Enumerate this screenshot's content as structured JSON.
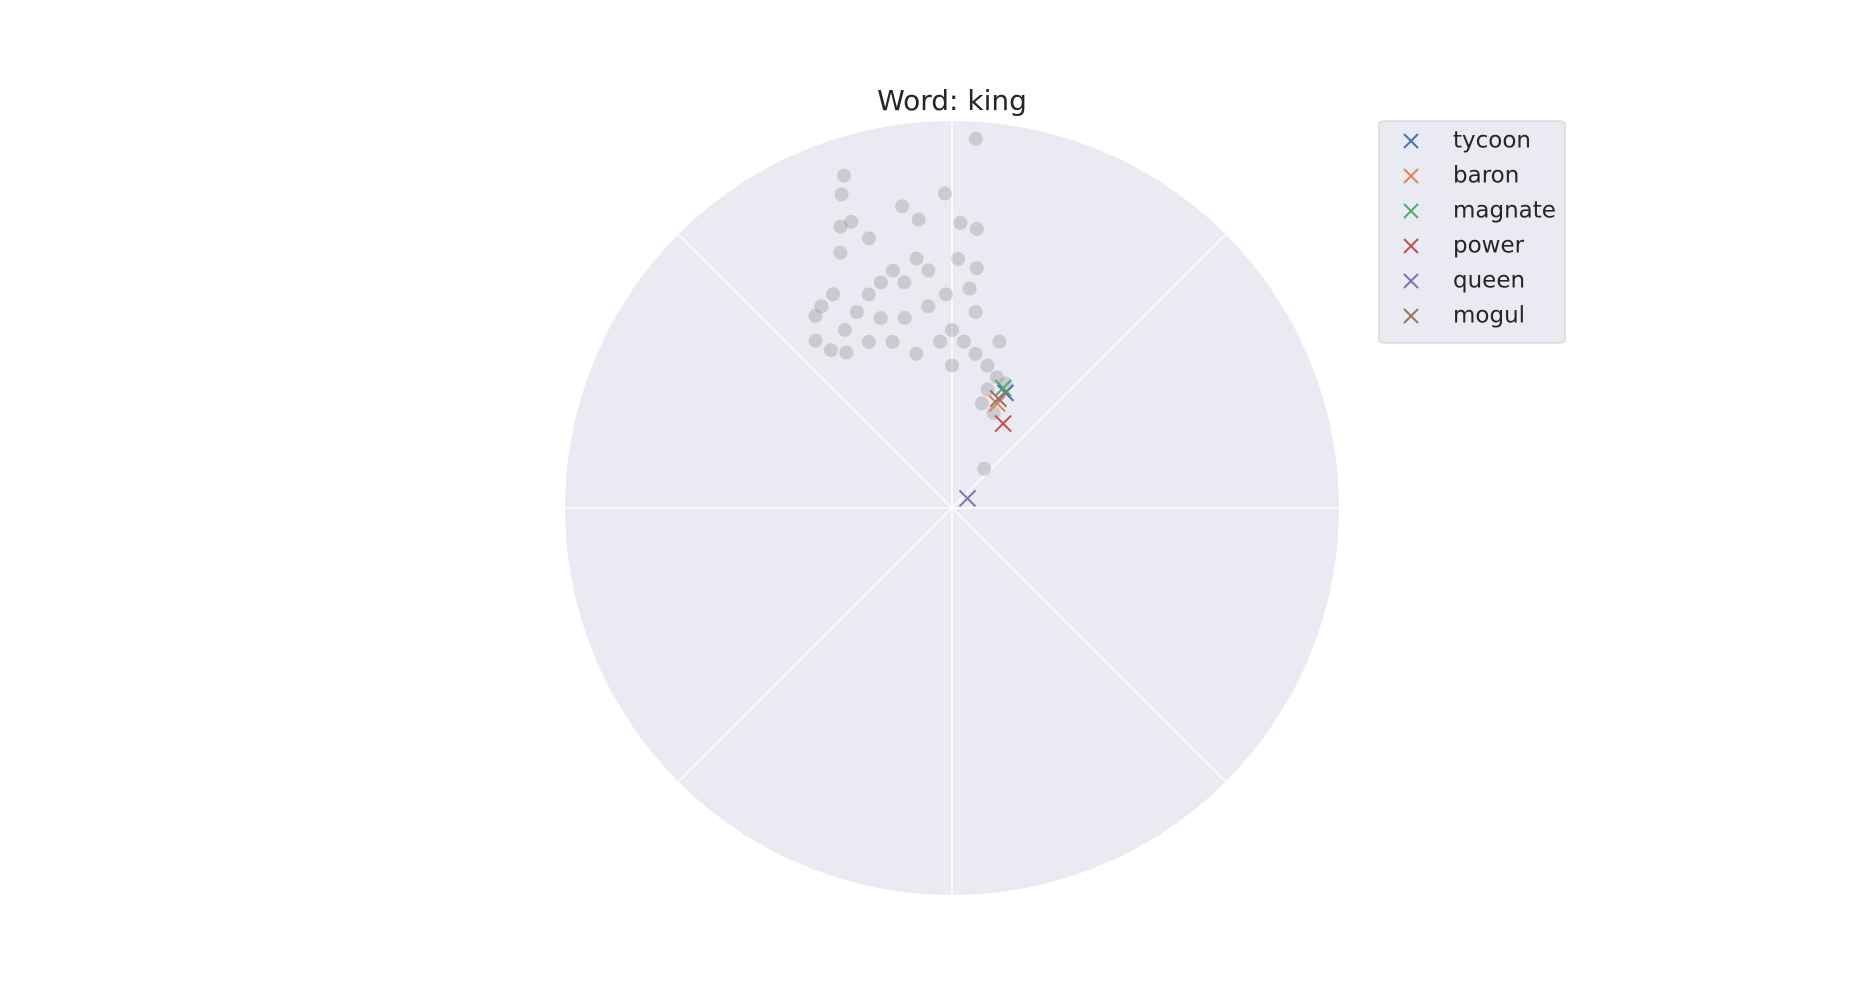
{
  "chart_data": {
    "type": "polar",
    "title": "Word: king",
    "rlim": [
      0,
      1
    ],
    "thetaticks": [
      0,
      45,
      90,
      135,
      180,
      225,
      270,
      315
    ],
    "grid": true,
    "series": [
      {
        "color": "#808080",
        "theta": [
          86.3,
          108.0,
          109.4,
          91.3,
          109.4,
          111.6,
          88.3,
          84.9,
          99.4,
          96.6,
          107.1,
          113.6,
          84.1,
          125.4,
          129.2,
          127.5,
          124.2,
          111.3,
          101.9,
          95.7,
          110.6,
          104.0,
          96.7,
          109.7,
          115.9,
          121.0,
          90.0,
          85.9,
          83.1,
          103.0,
          94.1,
          81.3,
          76.0,
          71.0,
          66.8,
          73.3,
          74.1,
          66.4,
          50.7,
          122.9,
          107.5,
          98.1,
          91.6,
          116.6,
          90.0,
          85.4,
          104.0,
          119.1,
          88.6,
          74.1
        ],
        "r": [
          0.956,
          0.903,
          0.859,
          0.813,
          0.784,
          0.782,
          0.737,
          0.724,
          0.79,
          0.75,
          0.729,
          0.72,
          0.623,
          0.609,
          0.558,
          0.514,
          0.486,
          0.592,
          0.596,
          0.617,
          0.524,
          0.506,
          0.525,
          0.456,
          0.563,
          0.537,
          0.46,
          0.431,
          0.51,
          0.409,
          0.431,
          0.403,
          0.379,
          0.357,
          0.35,
          0.32,
          0.281,
          0.268,
          0.131,
          0.621,
          0.611,
          0.651,
          0.552,
          0.48,
          0.368,
          0.569,
          0.632,
          0.632,
          0.644,
          0.447
        ]
      },
      {
        "name": "tycoon",
        "color": "#4c72b0",
        "theta": [
          65.1
        ],
        "r": [
          0.328
        ]
      },
      {
        "name": "baron",
        "color": "#dd8452",
        "theta": [
          66.6
        ],
        "r": [
          0.294
        ]
      },
      {
        "name": "magnate",
        "color": "#55a868",
        "theta": [
          66.9
        ],
        "r": [
          0.337
        ]
      },
      {
        "name": "power",
        "color": "#c44e52",
        "theta": [
          58.8
        ],
        "r": [
          0.255
        ]
      },
      {
        "name": "queen",
        "color": "#8172b3",
        "theta": [
          31.6
        ],
        "r": [
          0.047
        ]
      },
      {
        "name": "mogul",
        "color": "#937860",
        "theta": [
          67.0
        ],
        "r": [
          0.307
        ]
      }
    ]
  }
}
